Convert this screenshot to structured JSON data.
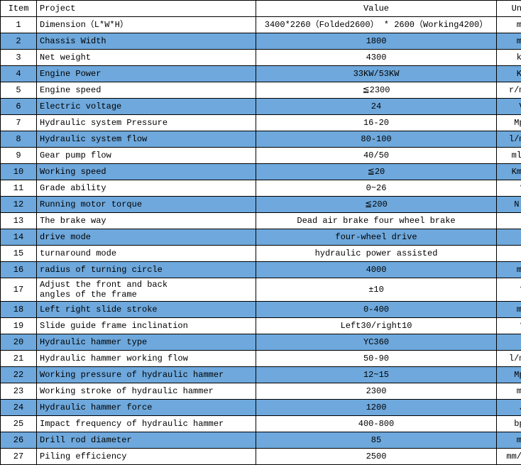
{
  "headers": {
    "item": "Item",
    "project": "Project",
    "value": "Value",
    "unit": "Unit"
  },
  "colors": {
    "row_highlight": "#6ea8dc",
    "row_normal": "#ffffff",
    "border": "#000000",
    "text": "#000000"
  },
  "rows": [
    {
      "item": "1",
      "project": "Dimension（L*W*H）",
      "value": "3400*2260（Folded2600） * 2600（Working4200）",
      "unit": "mm"
    },
    {
      "item": "2",
      "project": "Chassis Width",
      "value": "1800",
      "unit": "mm"
    },
    {
      "item": "3",
      "project": "Net weight",
      "value": "4300",
      "unit": "kg"
    },
    {
      "item": "4",
      "project": "Engine Power",
      "value": "33KW/53KW",
      "unit": "KW"
    },
    {
      "item": "5",
      "project": "Engine speed",
      "value": "≦2300",
      "unit": "r/min"
    },
    {
      "item": "6",
      "project": "Electric voltage",
      "value": "24",
      "unit": "V"
    },
    {
      "item": "7",
      "project": "Hydraulic system Pressure",
      "value": "16-20",
      "unit": "Mpa"
    },
    {
      "item": "8",
      "project": "Hydraulic system flow",
      "value": "80-100",
      "unit": "l/min"
    },
    {
      "item": "9",
      "project": "Gear pump flow",
      "value": "40/50",
      "unit": "ml/r"
    },
    {
      "item": "10",
      "project": "Working speed",
      "value": "≦20",
      "unit": "Km/h"
    },
    {
      "item": "11",
      "project": "Grade ability",
      "value": "0~26",
      "unit": "°"
    },
    {
      "item": "12",
      "project": "Running motor torque",
      "value": "≦200",
      "unit": "N'm"
    },
    {
      "item": "13",
      "project": "The brake way",
      "value": "Dead air brake four wheel brake",
      "unit": ""
    },
    {
      "item": "14",
      "project": "drive mode",
      "value": "four-wheel drive",
      "unit": ""
    },
    {
      "item": "15",
      "project": "turnaround mode",
      "value": "hydraulic power assisted",
      "unit": ""
    },
    {
      "item": "16",
      "project": "radius of turning circle",
      "value": "4000",
      "unit": "mm"
    },
    {
      "item": "17",
      "project": "Adjust the front and back\n angles of the frame",
      "value": "±10",
      "unit": "°"
    },
    {
      "item": "18",
      "project": "Left right slide stroke",
      "value": "0-400",
      "unit": "mm"
    },
    {
      "item": "19",
      "project": "Slide guide frame inclination",
      "value": "Left30/right10",
      "unit": "°"
    },
    {
      "item": "20",
      "project": "Hydraulic hammer type",
      "value": "YC360",
      "unit": ""
    },
    {
      "item": "21",
      "project": "Hydraulic hammer working flow",
      "value": "50-90",
      "unit": "l/min"
    },
    {
      "item": "22",
      "project": "Working pressure of hydraulic hammer",
      "value": "12~15",
      "unit": "Mpa"
    },
    {
      "item": "23",
      "project": "Working stroke of hydraulic hammer",
      "value": "2300",
      "unit": "mm"
    },
    {
      "item": "24",
      "project": "Hydraulic hammer force",
      "value": "1200",
      "unit": "J"
    },
    {
      "item": "25",
      "project": "Impact frequency of hydraulic hammer",
      "value": "400-800",
      "unit": "bpm"
    },
    {
      "item": "26",
      "project": "Drill rod diameter",
      "value": "85",
      "unit": "mm"
    },
    {
      "item": "27",
      "project": "Piling efficiency",
      "value": "2500",
      "unit": "mm/min"
    }
  ]
}
